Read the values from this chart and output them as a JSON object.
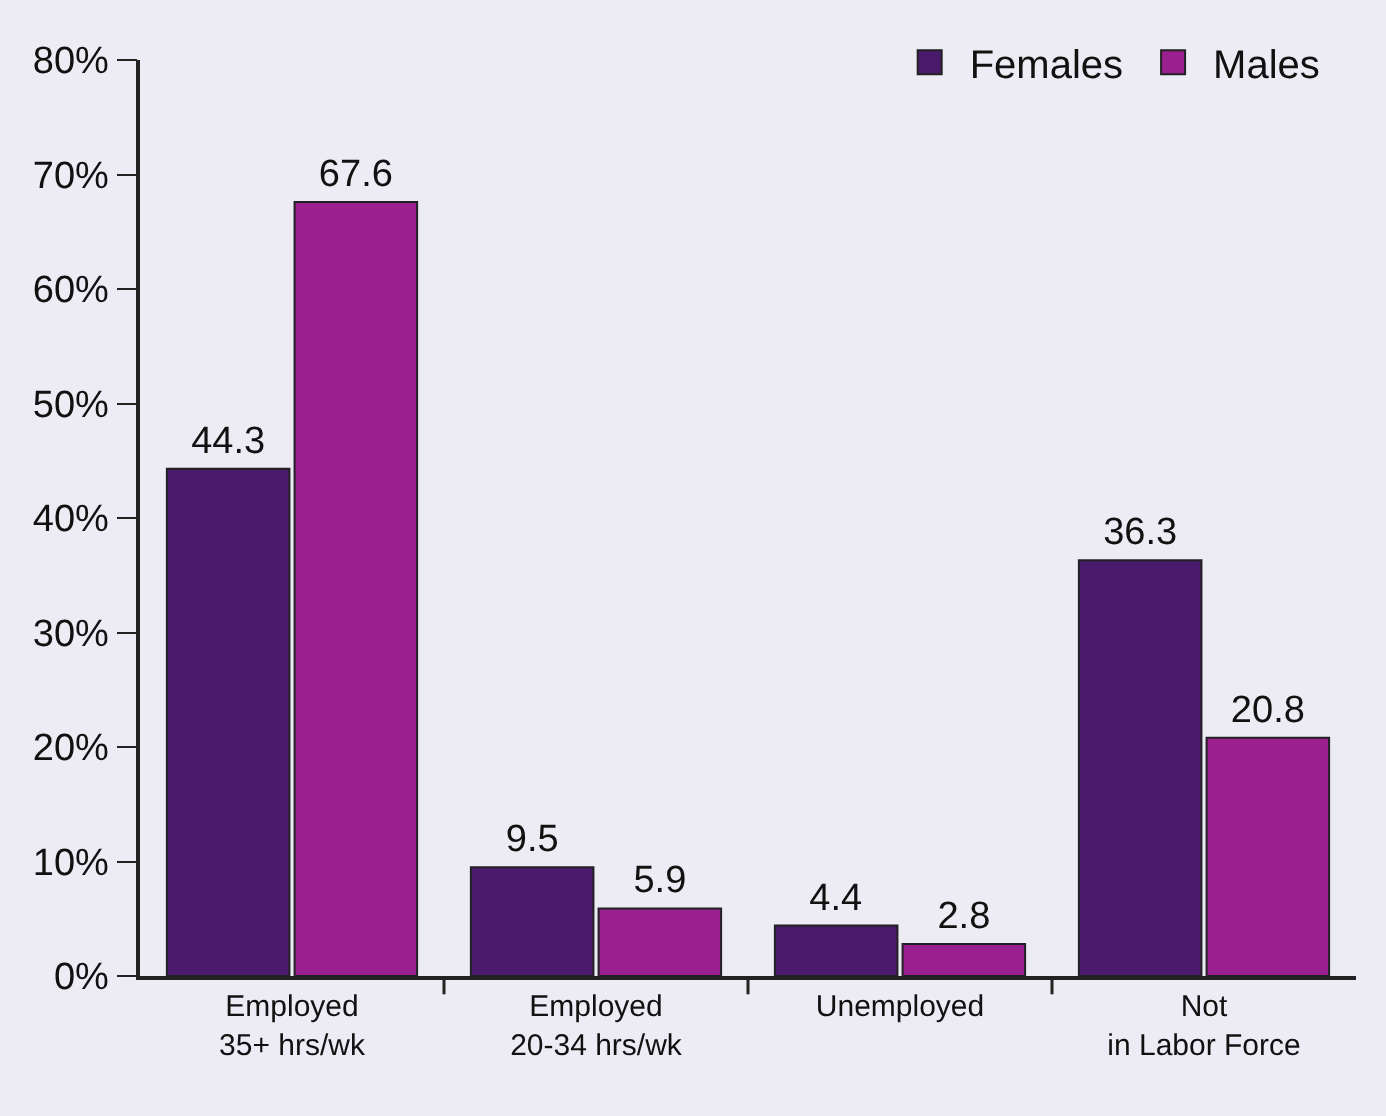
{
  "chart_data": {
    "type": "bar",
    "categories": [
      "Employed\n35+ hrs/wk",
      "Employed\n20-34 hrs/wk",
      "Unemployed",
      "Not\nin Labor Force"
    ],
    "series": [
      {
        "name": "Females",
        "color": "#4a1a6c",
        "values": [
          44.3,
          9.5,
          4.4,
          36.3
        ]
      },
      {
        "name": "Males",
        "color": "#9a1f8f",
        "values": [
          67.6,
          5.9,
          2.8,
          20.8
        ]
      }
    ],
    "ylim": [
      0,
      80
    ],
    "yticks": [
      {
        "value": 0,
        "label": "0%"
      },
      {
        "value": 10,
        "label": "10%"
      },
      {
        "value": 20,
        "label": "20%"
      },
      {
        "value": 30,
        "label": "30%"
      },
      {
        "value": 40,
        "label": "40%"
      },
      {
        "value": 50,
        "label": "50%"
      },
      {
        "value": 60,
        "label": "60%"
      },
      {
        "value": 70,
        "label": "70%"
      },
      {
        "value": 80,
        "label": "80%"
      }
    ],
    "data_labels": true,
    "grid": false,
    "legend": "top right"
  }
}
